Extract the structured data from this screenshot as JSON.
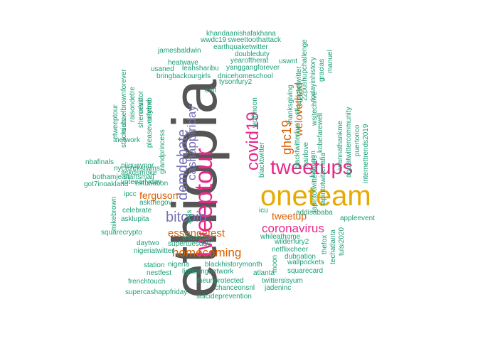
{
  "colors": {
    "teal": "#1b9e77",
    "orange": "#d95f02",
    "purple": "#7570b3",
    "magenta": "#e7298a",
    "gold": "#e6ab02",
    "gray": "#555555"
  },
  "words": [
    {
      "text": "ethiopia",
      "color": "gray"
    },
    {
      "text": "oneteam",
      "color": "gold"
    },
    {
      "text": "tweetups",
      "color": "magenta"
    },
    {
      "text": "tweeptour",
      "color": "magenta"
    },
    {
      "text": "covid19",
      "color": "magenta"
    },
    {
      "text": "coronavirus",
      "color": "magenta"
    },
    {
      "text": "bitcoin",
      "color": "purple"
    },
    {
      "text": "demdebate",
      "color": "purple"
    },
    {
      "text": "cashappfriday",
      "color": "purple"
    },
    {
      "text": "homecoming",
      "color": "orange"
    },
    {
      "text": "essencefest",
      "color": "orange"
    },
    {
      "text": "ferguson",
      "color": "orange"
    },
    {
      "text": "tweetup",
      "color": "orange"
    },
    {
      "text": "ghc19",
      "color": "orange"
    },
    {
      "text": "welovethad",
      "color": "orange"
    },
    {
      "text": "khandaanishafakhana",
      "color": "teal"
    },
    {
      "text": "wwdc19",
      "color": "teal"
    },
    {
      "text": "sweettoothattack",
      "color": "teal"
    },
    {
      "text": "earthquaketwitter",
      "color": "teal"
    },
    {
      "text": "jamesbaldwin",
      "color": "teal"
    },
    {
      "text": "doubleduty",
      "color": "teal"
    },
    {
      "text": "yearoftherat",
      "color": "teal"
    },
    {
      "text": "uswnt",
      "color": "teal"
    },
    {
      "text": "heatwave",
      "color": "teal"
    },
    {
      "text": "leahsharibu",
      "color": "teal"
    },
    {
      "text": "yanggangforever",
      "color": "teal"
    },
    {
      "text": "usaned",
      "color": "teal"
    },
    {
      "text": "bringbackourgirls",
      "color": "teal"
    },
    {
      "text": "dnicehomeschool",
      "color": "teal"
    },
    {
      "text": "tysonfury2",
      "color": "teal"
    },
    {
      "text": "edit",
      "color": "teal"
    },
    {
      "text": "blacktwitterlive",
      "color": "teal"
    },
    {
      "text": "22pushupchallenge",
      "color": "teal"
    },
    {
      "text": "fullmoon",
      "color": "teal"
    },
    {
      "text": "todayinhistory",
      "color": "teal"
    },
    {
      "text": "gracias",
      "color": "teal"
    },
    {
      "text": "manuel",
      "color": "teal"
    },
    {
      "text": "thanksgiving",
      "color": "teal"
    },
    {
      "text": "tapintotwitter",
      "color": "teal"
    },
    {
      "text": "wsjtechlive",
      "color": "teal"
    },
    {
      "text": "kobefarewell",
      "color": "teal"
    },
    {
      "text": "tapintotwitterlagos",
      "color": "teal"
    },
    {
      "text": "tapintotwitterlafia",
      "color": "teal"
    },
    {
      "text": "iwannathankme",
      "color": "teal"
    },
    {
      "text": "abujatwittercommunity",
      "color": "teal"
    },
    {
      "text": "puertorico",
      "color": "teal"
    },
    {
      "text": "internettrends2019",
      "color": "teal"
    },
    {
      "text": "stl",
      "color": "teal"
    },
    {
      "text": "hairlove",
      "color": "teal"
    },
    {
      "text": "wolfmoon",
      "color": "teal"
    },
    {
      "text": "blacktwitter",
      "color": "teal"
    },
    {
      "text": "retweeptour",
      "color": "teal"
    },
    {
      "text": "michaelbrownforever",
      "color": "teal"
    },
    {
      "text": "raisondetre",
      "color": "teal"
    },
    {
      "text": "mlvstor",
      "color": "teal"
    },
    {
      "text": "stacksats",
      "color": "teal"
    },
    {
      "text": "sheruesit",
      "color": "teal"
    },
    {
      "text": "usebnb",
      "color": "teal"
    },
    {
      "text": "pleaseverifyme",
      "color": "teal"
    },
    {
      "text": "network",
      "color": "teal"
    },
    {
      "text": "niiquaynor",
      "color": "teal"
    },
    {
      "text": "grandprincess",
      "color": "teal"
    },
    {
      "text": "askdsmoke",
      "color": "teal"
    },
    {
      "text": "voteearlyday",
      "color": "teal"
    },
    {
      "text": "nbafinals",
      "color": "teal"
    },
    {
      "text": "nyc",
      "color": "teal"
    },
    {
      "text": "ezekstwins",
      "color": "teal"
    },
    {
      "text": "startsmall",
      "color": "teal"
    },
    {
      "text": "bothamjean",
      "color": "teal"
    },
    {
      "text": "got7inoakland",
      "color": "teal"
    },
    {
      "text": "extubation",
      "color": "teal"
    },
    {
      "text": "ipcc",
      "color": "teal"
    },
    {
      "text": "askthegov",
      "color": "teal"
    },
    {
      "text": "celebrate",
      "color": "teal"
    },
    {
      "text": "asklupita",
      "color": "teal"
    },
    {
      "text": "mikebrown",
      "color": "teal"
    },
    {
      "text": "ards",
      "color": "teal"
    },
    {
      "text": "icu",
      "color": "teal"
    },
    {
      "text": "addisababa",
      "color": "teal"
    },
    {
      "text": "appleevent",
      "color": "teal"
    },
    {
      "text": "squarecrypto",
      "color": "teal"
    },
    {
      "text": "wisconsin",
      "color": "teal"
    },
    {
      "text": "whileathome",
      "color": "teal"
    },
    {
      "text": "wilderfury2",
      "color": "teal"
    },
    {
      "text": "daytwo",
      "color": "teal"
    },
    {
      "text": "supertuesday",
      "color": "teal"
    },
    {
      "text": "netflixcheer",
      "color": "teal"
    },
    {
      "text": "nigeriatwitter",
      "color": "teal"
    },
    {
      "text": "dubnation",
      "color": "teal"
    },
    {
      "text": "wallpockets",
      "color": "teal"
    },
    {
      "text": "station",
      "color": "teal"
    },
    {
      "text": "nigeria",
      "color": "teal"
    },
    {
      "text": "blackhistorymonth",
      "color": "teal"
    },
    {
      "text": "moon",
      "color": "teal"
    },
    {
      "text": "nestfest",
      "color": "teal"
    },
    {
      "text": "lightningnetwork",
      "color": "teal"
    },
    {
      "text": "atlanta",
      "color": "teal"
    },
    {
      "text": "squarecard",
      "color": "teal"
    },
    {
      "text": "frenchtouch",
      "color": "teal"
    },
    {
      "text": "theunprotected",
      "color": "teal"
    },
    {
      "text": "twittersisyum",
      "color": "teal"
    },
    {
      "text": "chanceonsnl",
      "color": "teal"
    },
    {
      "text": "jadeninc",
      "color": "teal"
    },
    {
      "text": "supercashappfriday",
      "color": "teal"
    },
    {
      "text": "suicideprevention",
      "color": "teal"
    },
    {
      "text": "thefox",
      "color": "teal"
    },
    {
      "text": "techatlanta",
      "color": "teal"
    },
    {
      "text": "tulsi2020",
      "color": "teal"
    },
    {
      "text": "askchrissy",
      "color": "teal"
    }
  ]
}
